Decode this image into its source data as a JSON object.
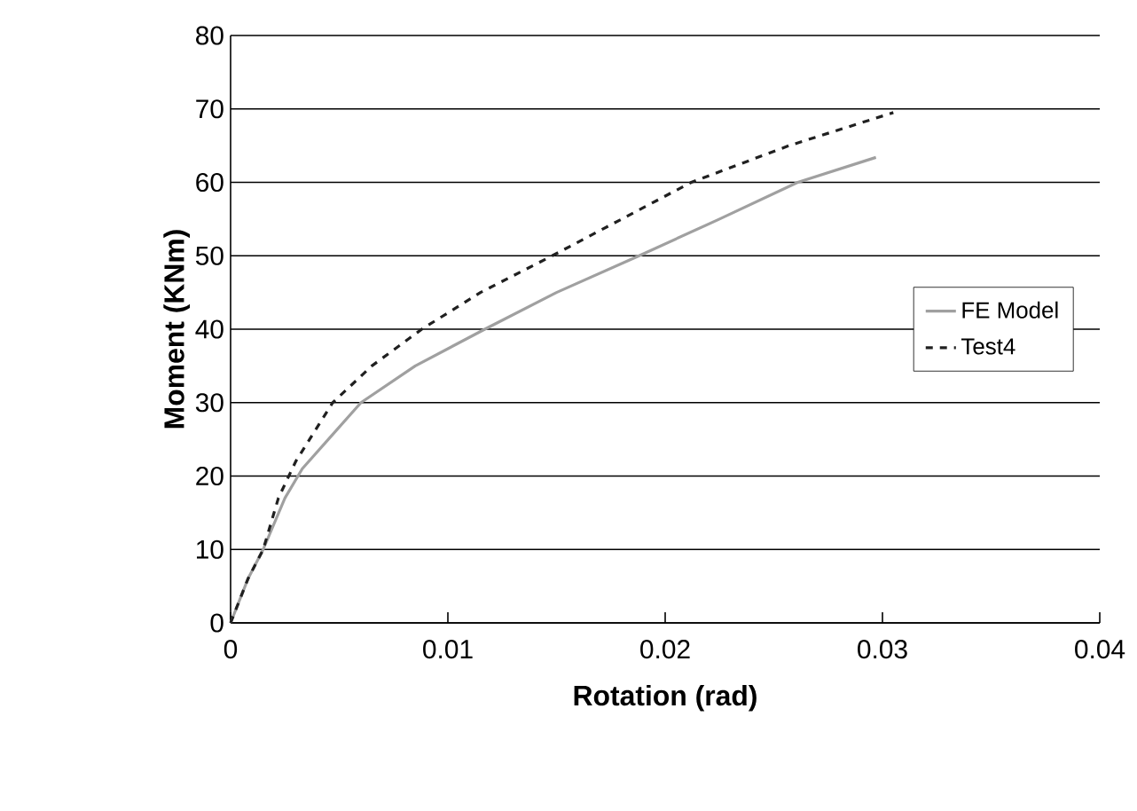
{
  "chart_data": {
    "type": "line",
    "xlabel": "Rotation (rad)",
    "ylabel": "Moment (KNm)",
    "xlim": [
      0,
      0.04
    ],
    "ylim": [
      0,
      80
    ],
    "xticks": [
      0,
      0.01,
      0.02,
      0.03,
      0.04
    ],
    "yticks": [
      0,
      10,
      20,
      30,
      40,
      50,
      60,
      70,
      80
    ],
    "grid": "y",
    "legend": "right",
    "marker": "none",
    "series": [
      {
        "name": "FE Model",
        "color": "#a0a0a0",
        "line_style": "solid",
        "x": [
          0,
          0.0008,
          0.0015,
          0.0025,
          0.0033,
          0.0045,
          0.006,
          0.0085,
          0.0117,
          0.015,
          0.0188,
          0.0225,
          0.0261,
          0.0297
        ],
        "values": [
          0,
          6,
          10,
          17,
          21,
          25,
          30,
          35,
          40,
          45,
          50,
          55,
          60,
          63.4
        ]
      },
      {
        "name": "Test4",
        "color": "#202020",
        "line_style": "dashed",
        "x": [
          0,
          0.0008,
          0.0015,
          0.0022,
          0.003,
          0.0047,
          0.0065,
          0.0088,
          0.0115,
          0.0148,
          0.018,
          0.0212,
          0.0257,
          0.0305
        ],
        "values": [
          0,
          6,
          10,
          17,
          22,
          30,
          35,
          40,
          45,
          50,
          55,
          60,
          65,
          69.5
        ]
      }
    ]
  }
}
